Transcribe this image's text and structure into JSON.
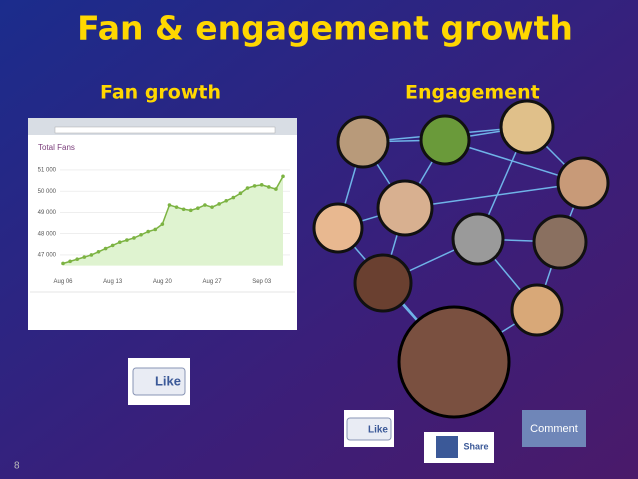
{
  "slide": {
    "title": "Fan & engagement growth",
    "left_heading": "Fan growth",
    "right_heading": "Engagement",
    "page_number": "8"
  },
  "buttons": {
    "like_large": "Like",
    "like_small": "Like",
    "share": "Share",
    "comment": "Comment"
  },
  "chart_data": {
    "type": "line",
    "title": "Total Fans",
    "color": "#7cb342",
    "fill": "#dff3d0",
    "categories": [
      "Aug 06",
      null,
      null,
      null,
      null,
      null,
      null,
      "Aug 13",
      null,
      null,
      null,
      null,
      null,
      null,
      "Aug 20",
      null,
      null,
      null,
      null,
      null,
      null,
      "Aug 27",
      null,
      null,
      null,
      null,
      null,
      null,
      "Sep 03",
      null,
      null,
      null
    ],
    "values": [
      46600,
      46700,
      46800,
      46900,
      47000,
      47150,
      47300,
      47450,
      47600,
      47700,
      47800,
      47950,
      48100,
      48200,
      48450,
      49350,
      49250,
      49150,
      49100,
      49200,
      49350,
      49250,
      49400,
      49550,
      49700,
      49900,
      50150,
      50250,
      50300,
      50200,
      50100,
      50700
    ],
    "ylim": [
      46500,
      51300
    ],
    "yticks": [
      {
        "value": 47000,
        "label": "47 000"
      },
      {
        "value": 48000,
        "label": "48 000"
      },
      {
        "value": 49000,
        "label": "49 000"
      },
      {
        "value": 50000,
        "label": "50 000"
      },
      {
        "value": 51000,
        "label": "51 000"
      }
    ],
    "grid": true
  }
}
